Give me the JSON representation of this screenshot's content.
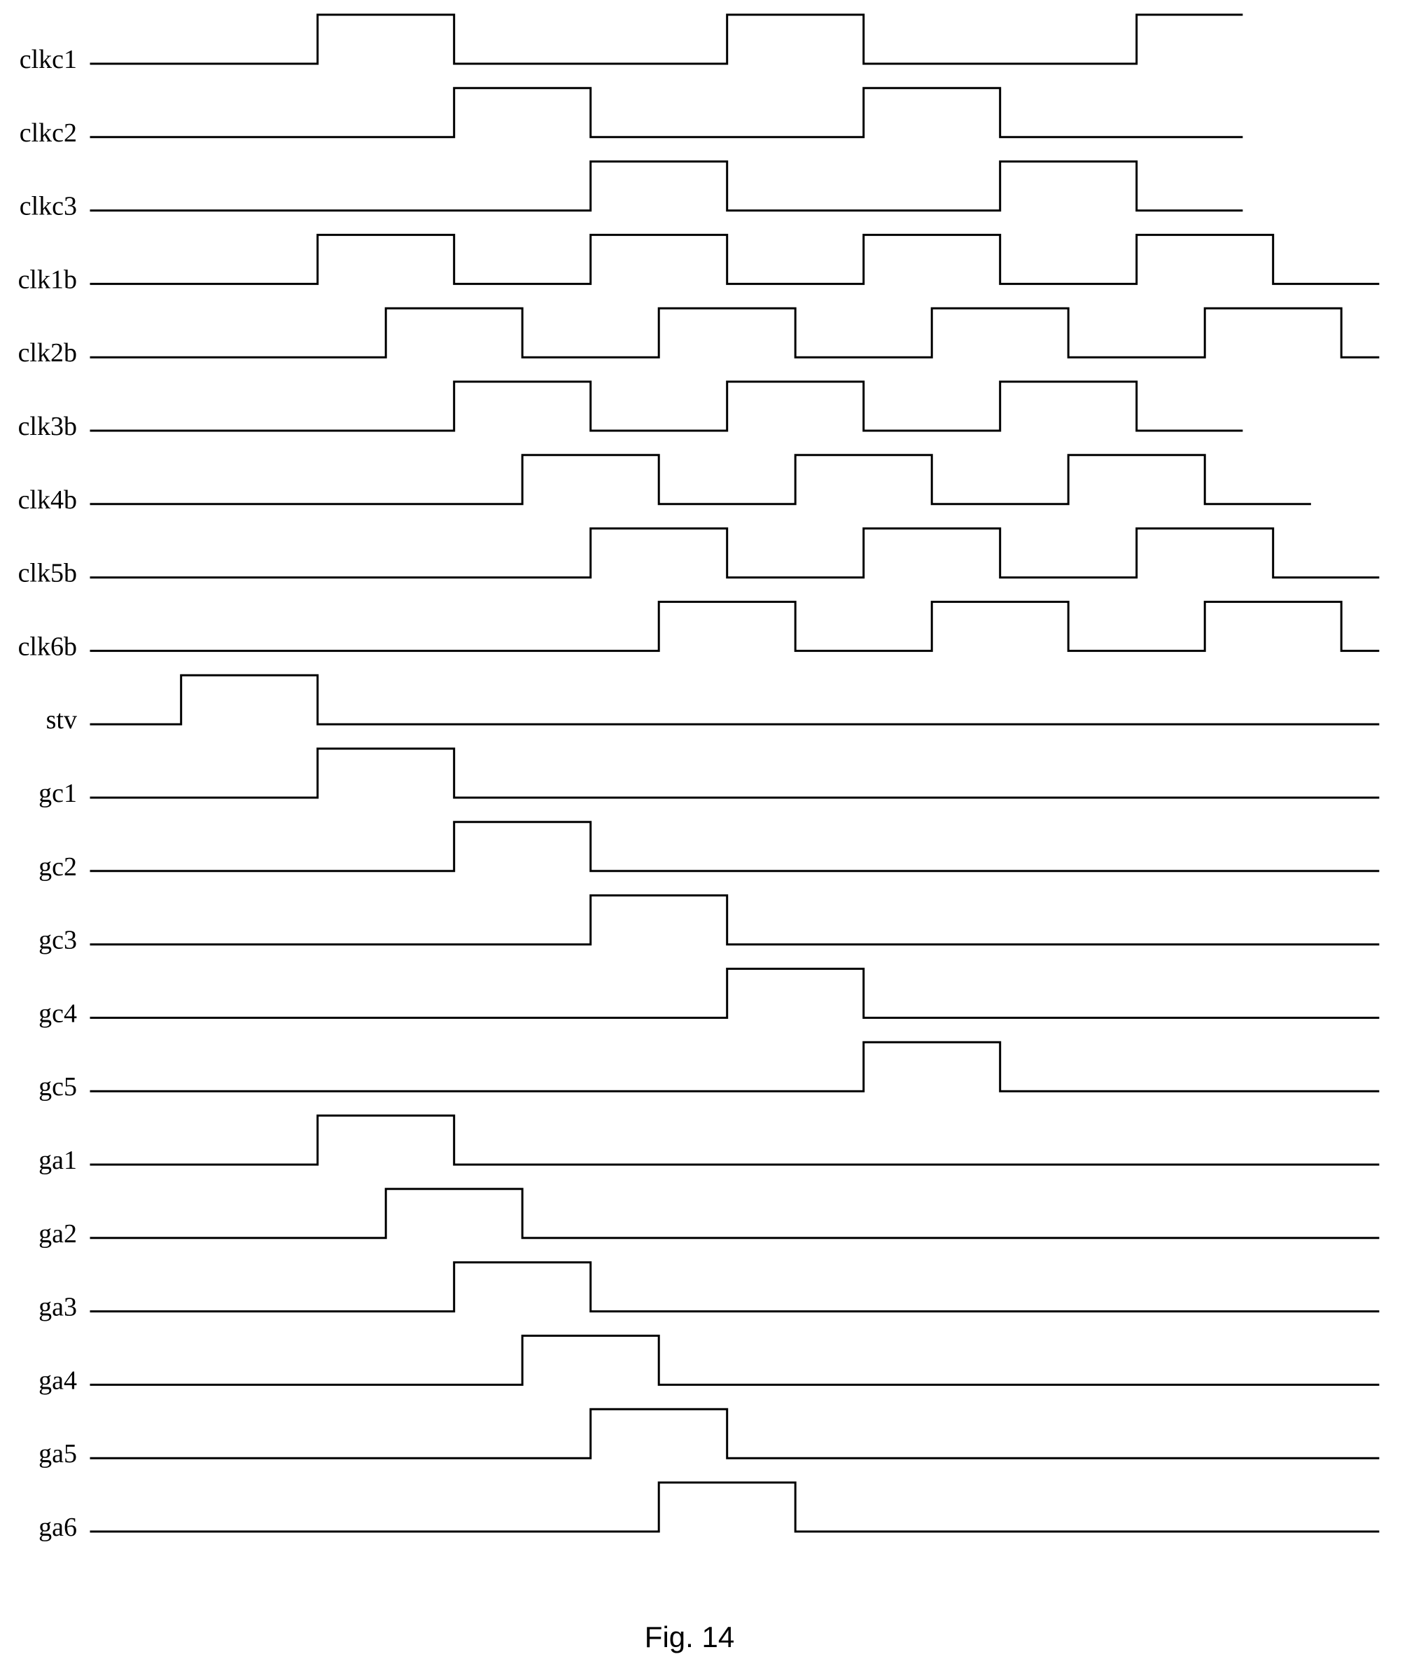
{
  "figure": {
    "caption": "Fig. 14",
    "time_unit_note": "",
    "signals": [
      {
        "name": "clkc1",
        "start": 0.0,
        "end": 8.43,
        "pulses": [
          [
            1.66,
            2.66
          ],
          [
            4.66,
            5.66
          ],
          [
            7.66,
            8.43
          ]
        ]
      },
      {
        "name": "clkc2",
        "start": 0.0,
        "end": 8.43,
        "pulses": [
          [
            2.66,
            3.66
          ],
          [
            5.66,
            6.66
          ]
        ]
      },
      {
        "name": "clkc3",
        "start": 0.0,
        "end": 8.43,
        "pulses": [
          [
            3.66,
            4.66
          ],
          [
            6.66,
            7.66
          ]
        ]
      },
      {
        "name": "clk1b",
        "start": 0.0,
        "end": 9.43,
        "pulses": [
          [
            1.66,
            2.66
          ],
          [
            3.66,
            4.66
          ],
          [
            5.66,
            6.66
          ],
          [
            7.66,
            8.66
          ]
        ]
      },
      {
        "name": "clk2b",
        "start": 0.0,
        "end": 9.43,
        "pulses": [
          [
            2.16,
            3.16
          ],
          [
            4.16,
            5.16
          ],
          [
            6.16,
            7.16
          ],
          [
            8.16,
            9.16
          ]
        ]
      },
      {
        "name": "clk3b",
        "start": 0.0,
        "end": 8.43,
        "pulses": [
          [
            2.66,
            3.66
          ],
          [
            4.66,
            5.66
          ],
          [
            6.66,
            7.66
          ]
        ]
      },
      {
        "name": "clk4b",
        "start": 0.0,
        "end": 8.93,
        "pulses": [
          [
            3.16,
            4.16
          ],
          [
            5.16,
            6.16
          ],
          [
            7.16,
            8.16
          ]
        ]
      },
      {
        "name": "clk5b",
        "start": 0.0,
        "end": 9.43,
        "pulses": [
          [
            3.66,
            4.66
          ],
          [
            5.66,
            6.66
          ],
          [
            7.66,
            8.66
          ]
        ]
      },
      {
        "name": "clk6b",
        "start": 0.0,
        "end": 9.43,
        "pulses": [
          [
            4.16,
            5.16
          ],
          [
            6.16,
            7.16
          ],
          [
            8.16,
            9.16
          ]
        ]
      },
      {
        "name": "stv",
        "start": 0.0,
        "end": 9.43,
        "pulses": [
          [
            0.66,
            1.66
          ]
        ]
      },
      {
        "name": "gc1",
        "start": 0.0,
        "end": 9.43,
        "pulses": [
          [
            1.66,
            2.66
          ]
        ]
      },
      {
        "name": "gc2",
        "start": 0.0,
        "end": 9.43,
        "pulses": [
          [
            2.66,
            3.66
          ]
        ]
      },
      {
        "name": "gc3",
        "start": 0.0,
        "end": 9.43,
        "pulses": [
          [
            3.66,
            4.66
          ]
        ]
      },
      {
        "name": "gc4",
        "start": 0.0,
        "end": 9.43,
        "pulses": [
          [
            4.66,
            5.66
          ]
        ]
      },
      {
        "name": "gc5",
        "start": 0.0,
        "end": 9.43,
        "pulses": [
          [
            5.66,
            6.66
          ]
        ]
      },
      {
        "name": "ga1",
        "start": 0.0,
        "end": 9.43,
        "pulses": [
          [
            1.66,
            2.66
          ]
        ]
      },
      {
        "name": "ga2",
        "start": 0.0,
        "end": 9.43,
        "pulses": [
          [
            2.16,
            3.16
          ]
        ]
      },
      {
        "name": "ga3",
        "start": 0.0,
        "end": 9.43,
        "pulses": [
          [
            2.66,
            3.66
          ]
        ]
      },
      {
        "name": "ga4",
        "start": 0.0,
        "end": 9.43,
        "pulses": [
          [
            3.16,
            4.16
          ]
        ]
      },
      {
        "name": "ga5",
        "start": 0.0,
        "end": 9.43,
        "pulses": [
          [
            3.66,
            4.66
          ]
        ]
      },
      {
        "name": "ga6",
        "start": 0.0,
        "end": 9.43,
        "pulses": [
          [
            4.16,
            5.16
          ]
        ]
      }
    ]
  }
}
